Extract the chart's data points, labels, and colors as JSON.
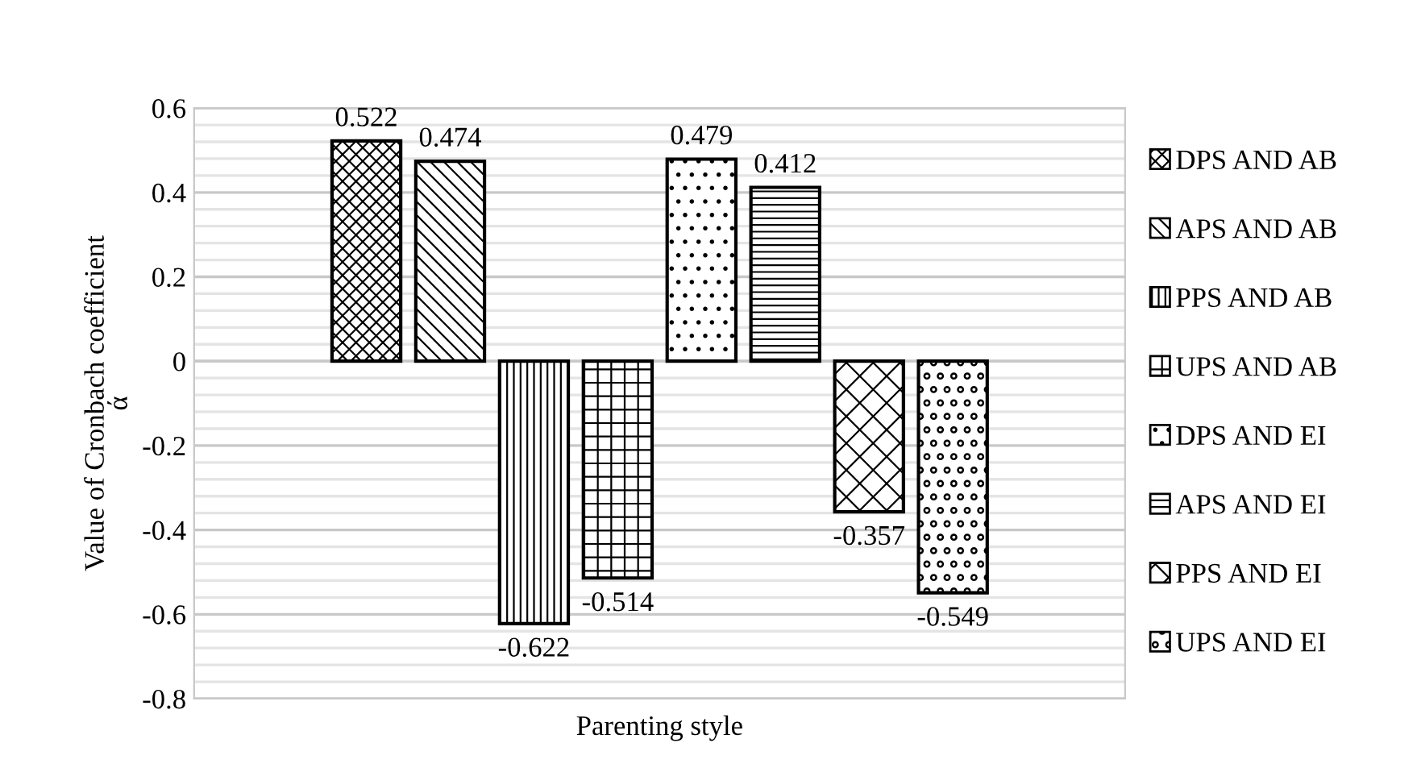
{
  "chart_data": {
    "type": "bar",
    "xlabel": "Parenting style",
    "ylabel": "Value of Cronbach coefficient\nά",
    "categories": [
      null
    ],
    "series": [
      {
        "name": "DPS AND AB",
        "color": "#000000",
        "values": [
          0.522
        ]
      },
      {
        "name": "APS AND AB",
        "color": "#000000",
        "values": [
          0.474
        ]
      },
      {
        "name": "PPS AND AB",
        "color": "#000000",
        "values": [
          -0.622
        ]
      },
      {
        "name": "UPS AND AB",
        "color": "#000000",
        "values": [
          -0.514
        ]
      },
      {
        "name": "DPS AND EI",
        "color": "#000000",
        "values": [
          0.479
        ]
      },
      {
        "name": "APS AND EI",
        "color": "#000000",
        "values": [
          0.412
        ]
      },
      {
        "name": "PPS AND EI",
        "color": "#000000",
        "values": [
          -0.357
        ]
      },
      {
        "name": "UPS AND EI",
        "color": "#000000",
        "values": [
          -0.549
        ]
      }
    ],
    "ylim": [
      -0.8,
      0.6
    ],
    "yticks": [
      -0.8,
      {
        "value": -0.76,
        "label": null
      },
      {
        "value": -0.72,
        "label": null
      },
      {
        "value": -0.68,
        "label": null
      },
      {
        "value": -0.64,
        "label": null
      },
      -0.6,
      {
        "value": -0.56,
        "label": null
      },
      {
        "value": -0.52,
        "label": null
      },
      {
        "value": -0.48,
        "label": null
      },
      {
        "value": -0.44,
        "label": null
      },
      -0.4,
      {
        "value": -0.36,
        "label": null
      },
      {
        "value": -0.32,
        "label": null
      },
      {
        "value": -0.28,
        "label": null
      },
      {
        "value": -0.24,
        "label": null
      },
      -0.2,
      {
        "value": -0.16,
        "label": null
      },
      {
        "value": -0.12,
        "label": null
      },
      {
        "value": -0.08,
        "label": null
      },
      {
        "value": -0.04,
        "label": null
      },
      0,
      {
        "value": 0.04,
        "label": null
      },
      {
        "value": 0.08,
        "label": null
      },
      {
        "value": 0.12,
        "label": null
      },
      {
        "value": 0.16,
        "label": null
      },
      0.2,
      {
        "value": 0.24,
        "label": null
      },
      {
        "value": 0.28,
        "label": null
      },
      {
        "value": 0.32,
        "label": null
      },
      {
        "value": 0.36,
        "label": null
      },
      0.4,
      {
        "value": 0.44,
        "label": null
      },
      {
        "value": 0.48,
        "label": null
      },
      {
        "value": 0.52,
        "label": null
      },
      {
        "value": 0.56,
        "label": null
      },
      0.6
    ],
    "grid": "y",
    "legend": "right",
    "data_labels": true
  }
}
